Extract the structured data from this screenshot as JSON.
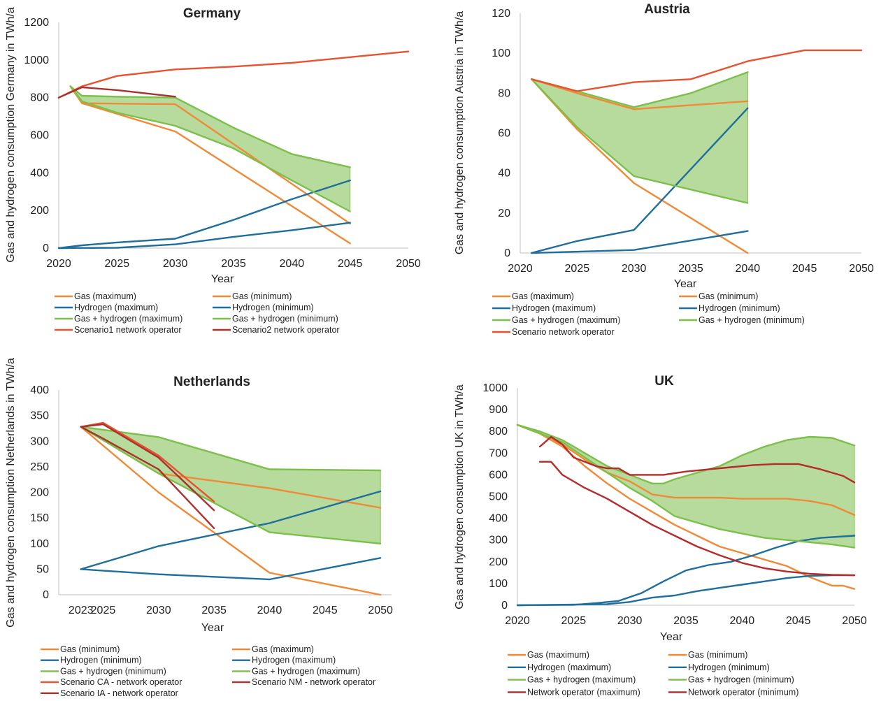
{
  "chart_data": [
    {
      "type": "line",
      "title": "Germany",
      "xlabel": "Year",
      "ylabel": "Gas and hydrogen consumption Germany in TWh/a",
      "xlim": [
        2020,
        2050
      ],
      "ylim": [
        0,
        1200
      ],
      "xticks": [
        2020,
        2025,
        2030,
        2035,
        2040,
        2045,
        2050
      ],
      "yticks": [
        0,
        200,
        400,
        600,
        800,
        1000,
        1200
      ],
      "grid": false,
      "legend_position": "bottom",
      "band": {
        "upper": "Gas + hydrogen (maximum)",
        "lower": "Gas + hydrogen (minimum)",
        "color": "#a9d58b"
      },
      "series": [
        {
          "name": "Gas (maximum)",
          "color": "#f08a37",
          "x": [
            2021,
            2022,
            2030,
            2045
          ],
          "y": [
            860,
            770,
            765,
            130
          ]
        },
        {
          "name": "Gas (minimum)",
          "color": "#f08a37",
          "x": [
            2021,
            2022,
            2030,
            2045
          ],
          "y": [
            860,
            770,
            620,
            25
          ]
        },
        {
          "name": "Hydrogen (maximum)",
          "color": "#1f6e9c",
          "x": [
            2020,
            2022,
            2025,
            2030,
            2035,
            2040,
            2045
          ],
          "y": [
            0,
            15,
            30,
            50,
            150,
            260,
            360
          ]
        },
        {
          "name": "Hydrogen (minimum)",
          "color": "#1f6e9c",
          "x": [
            2020,
            2025,
            2030,
            2035,
            2040,
            2045
          ],
          "y": [
            0,
            2,
            20,
            60,
            95,
            135
          ]
        },
        {
          "name": "Gas + hydrogen (maximum)",
          "color": "#7cc04b",
          "x": [
            2021,
            2022,
            2025,
            2030,
            2035,
            2040,
            2045
          ],
          "y": [
            860,
            810,
            805,
            800,
            640,
            500,
            430
          ]
        },
        {
          "name": "Gas + hydrogen (minimum)",
          "color": "#7cc04b",
          "x": [
            2021,
            2022,
            2025,
            2030,
            2035,
            2040,
            2045
          ],
          "y": [
            860,
            780,
            720,
            650,
            530,
            360,
            195
          ]
        },
        {
          "name": "Scenario1 network operator",
          "color": "#e8522e",
          "x": [
            2020,
            2022,
            2025,
            2030,
            2035,
            2040,
            2045,
            2050
          ],
          "y": [
            800,
            860,
            915,
            950,
            965,
            985,
            1015,
            1045
          ]
        },
        {
          "name": "Scenario2 network operator",
          "color": "#a8322e",
          "x": [
            2020,
            2022,
            2025,
            2030
          ],
          "y": [
            800,
            855,
            840,
            805
          ]
        }
      ]
    },
    {
      "type": "line",
      "title": "Austria",
      "xlabel": "Year",
      "ylabel": "Gas and hydrogen consumption Austria in TWh/a",
      "xlim": [
        2020,
        2050
      ],
      "ylim": [
        0,
        120
      ],
      "xticks": [
        2020,
        2025,
        2030,
        2035,
        2040,
        2045,
        2050
      ],
      "yticks": [
        0,
        20,
        40,
        60,
        80,
        100,
        120
      ],
      "grid": false,
      "legend_position": "bottom",
      "band": {
        "upper": "Gas + hydrogen (maximum)",
        "lower": "Gas + hydrogen (minimum)",
        "color": "#a9d58b"
      },
      "series": [
        {
          "name": "Gas (maximum)",
          "color": "#f08a37",
          "x": [
            2021,
            2025,
            2030,
            2040
          ],
          "y": [
            87,
            80,
            72,
            76
          ]
        },
        {
          "name": "Gas (minimum)",
          "color": "#f08a37",
          "x": [
            2021,
            2025,
            2030,
            2040
          ],
          "y": [
            87,
            62,
            35,
            0
          ]
        },
        {
          "name": "Hydrogen (maximum)",
          "color": "#1f6e9c",
          "x": [
            2021,
            2025,
            2030,
            2040
          ],
          "y": [
            0,
            6,
            11.5,
            72.5
          ]
        },
        {
          "name": "Hydrogen (minimum)",
          "color": "#1f6e9c",
          "x": [
            2021,
            2030,
            2040
          ],
          "y": [
            0,
            1.5,
            11
          ]
        },
        {
          "name": "Gas + hydrogen (maximum)",
          "color": "#7cc04b",
          "x": [
            2021,
            2025,
            2030,
            2035,
            2040
          ],
          "y": [
            87,
            81,
            73,
            80,
            90.5
          ]
        },
        {
          "name": "Gas + hydrogen (minimum)",
          "color": "#7cc04b",
          "x": [
            2021,
            2025,
            2030,
            2040
          ],
          "y": [
            87,
            63,
            38.5,
            25
          ]
        },
        {
          "name": "Scenario network operator",
          "color": "#e8522e",
          "x": [
            2021,
            2025,
            2030,
            2035,
            2040,
            2045,
            2050
          ],
          "y": [
            87,
            81,
            85.5,
            87,
            96,
            101.5,
            101.5
          ]
        }
      ]
    },
    {
      "type": "line",
      "title": "Netherlands",
      "xlabel": "Year",
      "ylabel": "Gas and hydrogen consumption Netherlands in TWh/a",
      "xlim": [
        2021,
        2051
      ],
      "ylim": [
        0,
        400
      ],
      "xticks": [
        2023,
        2025,
        2030,
        2035,
        2040,
        2045,
        2050
      ],
      "yticks": [
        0,
        50,
        100,
        150,
        200,
        250,
        300,
        350,
        400
      ],
      "grid": false,
      "legend_position": "bottom",
      "band": {
        "upper": "Gas + hydrogen (maximum)",
        "lower": "Gas + hydrogen (minimum)",
        "color": "#a9d58b"
      },
      "series": [
        {
          "name": "Gas (minimum)",
          "color": "#f08a37",
          "x": [
            2023,
            2030,
            2040,
            2050
          ],
          "y": [
            328,
            200,
            43,
            0
          ]
        },
        {
          "name": "Gas (maximum)",
          "color": "#f08a37",
          "x": [
            2023,
            2030,
            2040,
            2050
          ],
          "y": [
            328,
            237,
            208,
            170
          ]
        },
        {
          "name": "Hydrogen (minimum)",
          "color": "#1f6e9c",
          "x": [
            2023,
            2030,
            2040,
            2050
          ],
          "y": [
            50,
            40,
            30,
            72
          ]
        },
        {
          "name": "Hydrogen (maximum)",
          "color": "#1f6e9c",
          "x": [
            2023,
            2030,
            2040,
            2050
          ],
          "y": [
            50,
            95,
            140,
            202
          ]
        },
        {
          "name": "Gas + hydrogen (minimum)",
          "color": "#7cc04b",
          "x": [
            2023,
            2030,
            2040,
            2050
          ],
          "y": [
            328,
            237,
            122,
            100
          ]
        },
        {
          "name": "Gas + hydrogen (maximum)",
          "color": "#7cc04b",
          "x": [
            2023,
            2030,
            2040,
            2050
          ],
          "y": [
            328,
            308,
            245,
            243
          ]
        },
        {
          "name": "Scenario CA - network operator",
          "color": "#e8522e",
          "x": [
            2023,
            2025,
            2030,
            2035
          ],
          "y": [
            328,
            336,
            272,
            182
          ]
        },
        {
          "name": "Scenario NM - network operator",
          "color": "#a8322e",
          "x": [
            2023,
            2025,
            2030,
            2035
          ],
          "y": [
            328,
            333,
            268,
            165
          ]
        },
        {
          "name": "Scenario IA - network operator",
          "color": "#a8322e",
          "x": [
            2023,
            2025,
            2030,
            2035
          ],
          "y": [
            328,
            305,
            245,
            130
          ]
        }
      ]
    },
    {
      "type": "line",
      "title": "UK",
      "xlabel": "Year",
      "ylabel": "Gas and hydrogen consumption UK in TWh/a",
      "xlim": [
        2020,
        2050
      ],
      "ylim": [
        0,
        1000
      ],
      "xticks": [
        2020,
        2025,
        2030,
        2035,
        2040,
        2045,
        2050
      ],
      "yticks": [
        0,
        100,
        200,
        300,
        400,
        500,
        600,
        700,
        800,
        900,
        1000
      ],
      "grid": false,
      "legend_position": "bottom",
      "band": {
        "upper": "Gas + hydrogen (minimum)",
        "lower": "Gas + hydrogen (maximum)",
        "color": "#a9d58b"
      },
      "series": [
        {
          "name": "Gas (maximum)",
          "color": "#f08a37",
          "x": [
            2020,
            2022,
            2024,
            2026,
            2028,
            2030,
            2032,
            2034,
            2036,
            2038,
            2040,
            2042,
            2044,
            2046,
            2048,
            2050
          ],
          "y": [
            830,
            790,
            740,
            670,
            610,
            570,
            510,
            495,
            495,
            495,
            490,
            490,
            490,
            480,
            460,
            415
          ]
        },
        {
          "name": "Gas (minimum)",
          "color": "#f08a37",
          "x": [
            2020,
            2022,
            2024,
            2026,
            2028,
            2030,
            2032,
            2034,
            2036,
            2038,
            2040,
            2042,
            2044,
            2046,
            2048,
            2049,
            2050
          ],
          "y": [
            830,
            790,
            730,
            640,
            560,
            490,
            430,
            370,
            320,
            270,
            240,
            210,
            180,
            130,
            90,
            90,
            75
          ]
        },
        {
          "name": "Hydrogen (maximum)",
          "color": "#1f6e9c",
          "x": [
            2020,
            2025,
            2027,
            2029,
            2031,
            2033,
            2035,
            2037,
            2039,
            2041,
            2043,
            2045,
            2047,
            2050
          ],
          "y": [
            0,
            2,
            10,
            20,
            55,
            110,
            160,
            185,
            200,
            230,
            265,
            295,
            310,
            320
          ]
        },
        {
          "name": "Hydrogen (minimum)",
          "color": "#1f6e9c",
          "x": [
            2020,
            2028,
            2030,
            2032,
            2034,
            2036,
            2038,
            2040,
            2042,
            2044,
            2046,
            2048,
            2050
          ],
          "y": [
            0,
            5,
            15,
            35,
            45,
            65,
            80,
            95,
            110,
            125,
            135,
            138,
            138
          ]
        },
        {
          "name": "Gas + hydrogen (maximum)",
          "color": "#7cc04b",
          "x": [
            2020,
            2022,
            2024,
            2026,
            2028,
            2030,
            2032,
            2034,
            2036,
            2038,
            2040,
            2042,
            2044,
            2046,
            2048,
            2050
          ],
          "y": [
            830,
            790,
            750,
            680,
            610,
            540,
            480,
            410,
            380,
            350,
            330,
            310,
            300,
            290,
            280,
            265
          ]
        },
        {
          "name": "Gas + hydrogen (minimum)",
          "color": "#7cc04b",
          "x": [
            2020,
            2022,
            2024,
            2026,
            2028,
            2030,
            2031,
            2032,
            2033,
            2034,
            2036,
            2038,
            2040,
            2042,
            2044,
            2046,
            2048,
            2050
          ],
          "y": [
            830,
            800,
            760,
            700,
            640,
            600,
            580,
            560,
            560,
            580,
            610,
            640,
            690,
            730,
            760,
            775,
            770,
            735
          ]
        },
        {
          "name": "Network operator (maximum)",
          "color": "#b52a2a",
          "x": [
            2022,
            2023,
            2024,
            2025,
            2026,
            2027,
            2028,
            2029,
            2030,
            2031,
            2032,
            2033,
            2035,
            2037,
            2039,
            2041,
            2043,
            2045,
            2047,
            2049,
            2050
          ],
          "y": [
            730,
            775,
            740,
            680,
            660,
            640,
            630,
            630,
            600,
            600,
            600,
            600,
            615,
            625,
            635,
            645,
            650,
            650,
            625,
            595,
            565
          ]
        },
        {
          "name": "Network operator (minimum)",
          "color": "#b52a2a",
          "x": [
            2022,
            2023,
            2024,
            2026,
            2028,
            2030,
            2032,
            2034,
            2036,
            2038,
            2040,
            2042,
            2044,
            2046,
            2048,
            2050
          ],
          "y": [
            660,
            660,
            600,
            540,
            490,
            430,
            370,
            320,
            270,
            230,
            195,
            170,
            155,
            145,
            140,
            138
          ]
        }
      ]
    }
  ]
}
